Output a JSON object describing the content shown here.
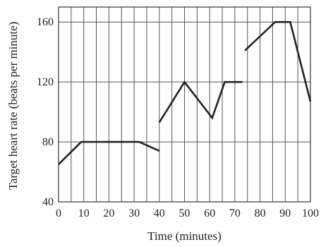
{
  "chart_data": {
    "type": "line",
    "title": "",
    "xlabel": "Time (minutes)",
    "ylabel": "Target heart rate (beats per minute)",
    "xlim": [
      0,
      100
    ],
    "ylim": [
      40,
      170
    ],
    "grid": true,
    "x_ticks": [
      0,
      10,
      20,
      30,
      40,
      50,
      60,
      70,
      80,
      90,
      100
    ],
    "y_ticks": [
      40,
      80,
      120,
      160
    ],
    "x_grid": [
      0,
      5,
      10,
      15,
      20,
      25,
      30,
      35,
      40,
      45,
      50,
      55,
      60,
      65,
      70,
      75,
      80,
      85,
      90,
      95,
      100
    ],
    "y_grid": [
      40,
      80,
      120,
      160
    ],
    "line_color": "#222222",
    "segments": [
      {
        "points": [
          [
            0,
            65
          ],
          [
            9,
            80
          ],
          [
            32,
            80
          ],
          [
            40,
            74
          ]
        ]
      },
      {
        "points": [
          [
            40,
            93
          ],
          [
            50,
            120
          ],
          [
            61,
            96
          ],
          [
            66,
            120
          ],
          [
            73,
            120
          ]
        ]
      },
      {
        "points": [
          [
            74,
            141
          ],
          [
            86,
            160
          ],
          [
            92,
            160
          ],
          [
            100,
            107
          ]
        ]
      }
    ]
  }
}
